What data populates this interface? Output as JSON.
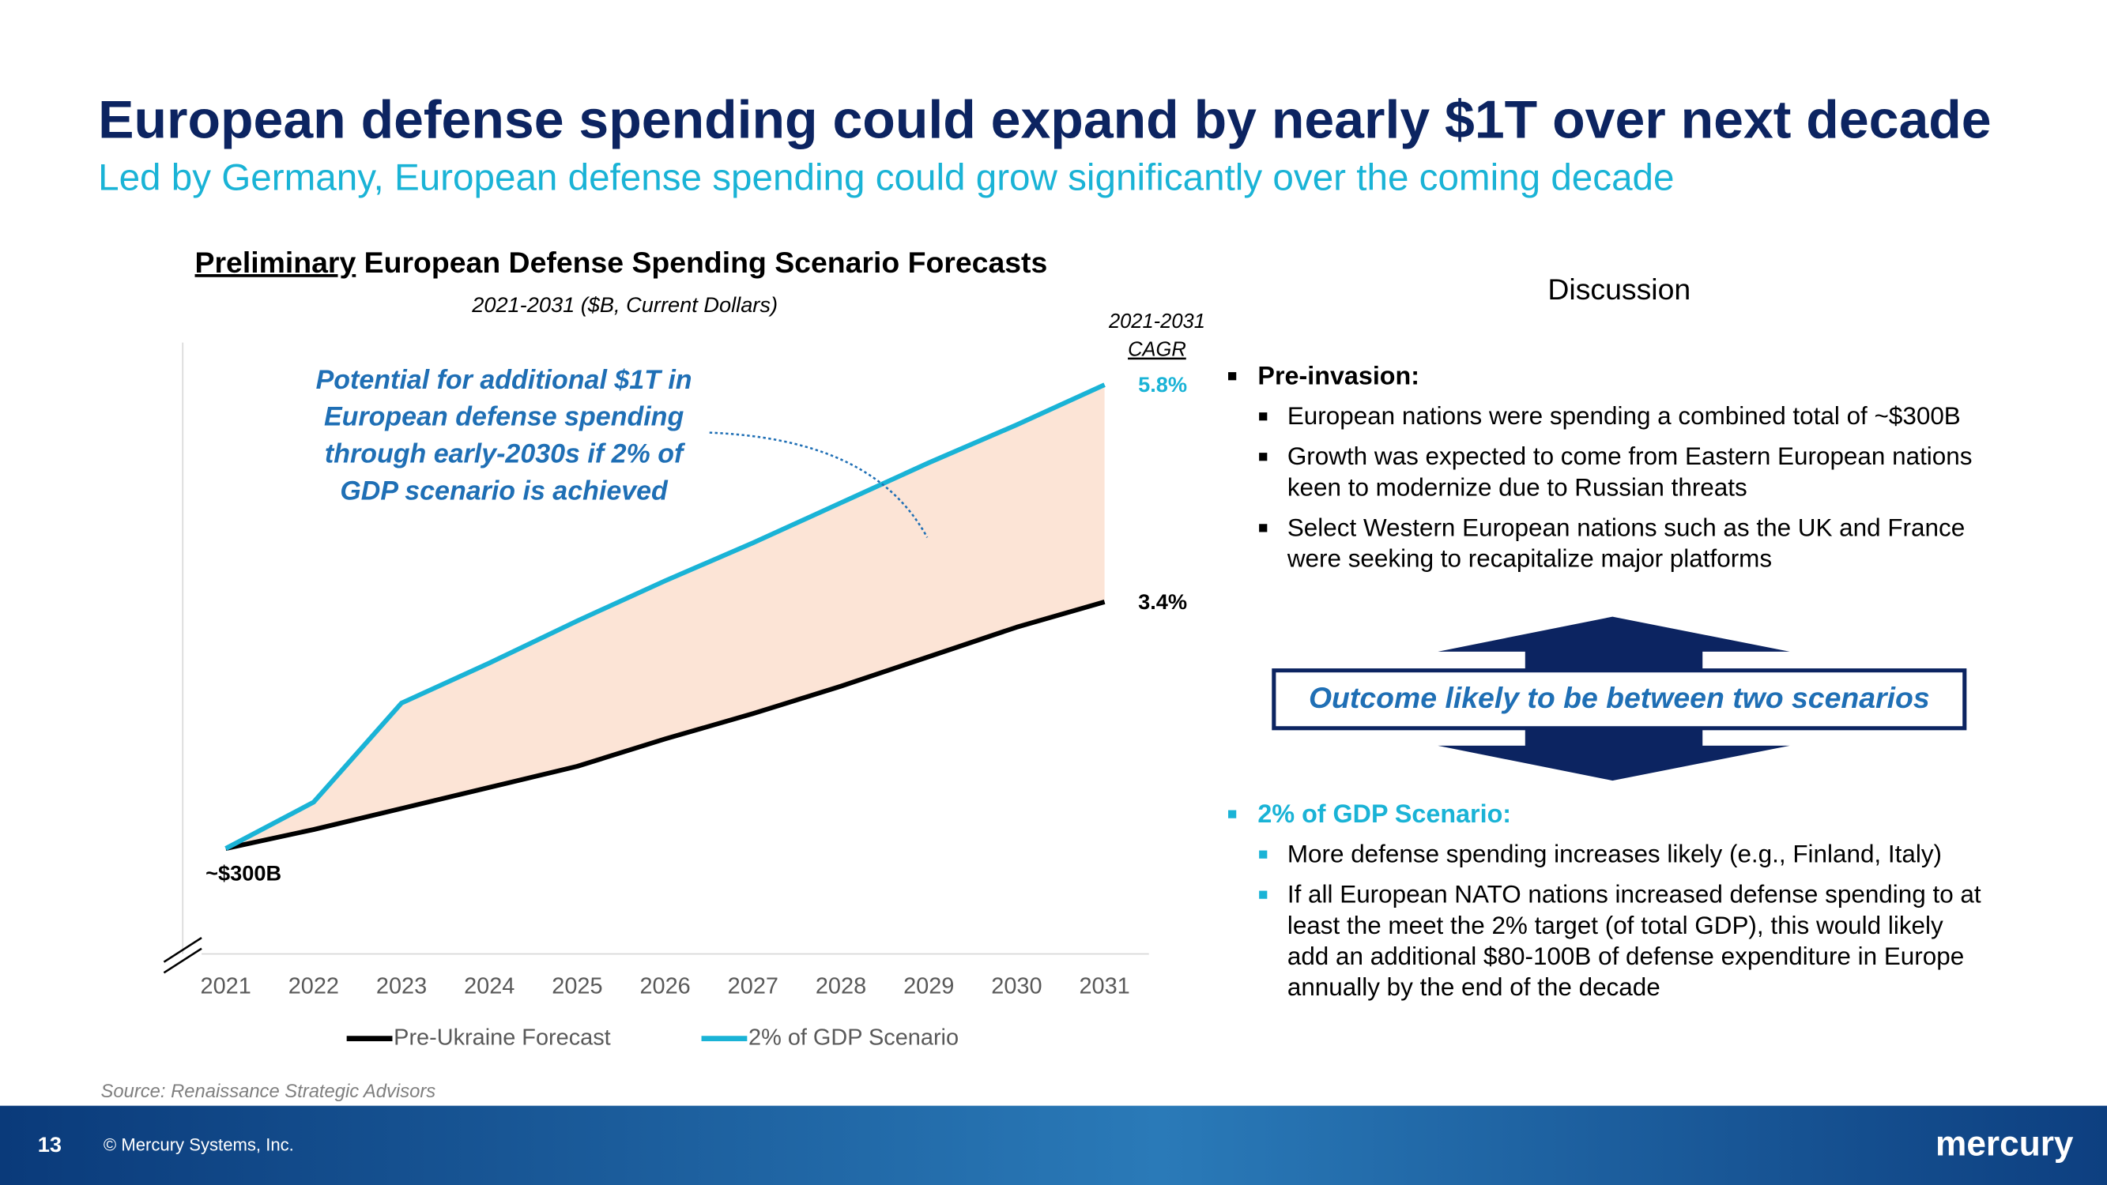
{
  "title": "European defense spending could expand by nearly $1T over next decade",
  "subtitle": "Led by Germany, European defense spending could grow significantly over the coming decade",
  "chart_data": {
    "type": "line",
    "title": [
      "Preliminary",
      "European Defense Spending Scenario Forecasts"
    ],
    "subtitle": "2021-2031 ($B, Current Dollars)",
    "categories": [
      "2021",
      "2022",
      "2023",
      "2024",
      "2025",
      "2026",
      "2027",
      "2028",
      "2029",
      "2030",
      "2031"
    ],
    "series": [
      {
        "name": "Pre-Ukraine Forecast",
        "color": "#000000",
        "values": [
          300,
          309,
          319,
          329,
          339,
          352,
          364,
          377,
          391,
          405,
          417
        ]
      },
      {
        "name": "2% of GDP Scenario",
        "color": "#1ab3d6",
        "values": [
          300,
          322,
          369,
          388,
          408,
          427,
          445,
          464,
          483,
          501,
          520
        ]
      }
    ],
    "ylim": [
      250,
      540
    ],
    "fill_between": "#fce4d6",
    "legend": "bottom",
    "start_label": "~$300B",
    "cagr_header": [
      "2021-2031",
      "CAGR"
    ],
    "end_labels": [
      "3.4%",
      "5.8%"
    ],
    "annotation": [
      "Potential for additional $1T in",
      "European defense spending",
      "through early-2030s if 2% of",
      "GDP scenario is achieved"
    ]
  },
  "discussion": {
    "title": "Discussion",
    "sections": [
      {
        "heading": "Pre-invasion:",
        "color": "#000000",
        "bullets": [
          [
            "European nations were spending a combined total of ~$300B"
          ],
          [
            "Growth was expected to come from Eastern European nations",
            "keen to modernize due to Russian threats"
          ],
          [
            "Select Western European nations such as the UK and France",
            "were seeking to recapitalize major platforms"
          ]
        ]
      },
      {
        "heading": "2% of GDP Scenario:",
        "color": "#1ab3d6",
        "bullets": [
          [
            "More defense spending increases likely (e.g., Finland, Italy)"
          ],
          [
            "If all European NATO nations increased defense spending to at",
            "least the meet the 2% target (of total GDP), this would likely",
            "add an additional $80-100B of defense expenditure in Europe",
            "annually by the end of the decade"
          ]
        ]
      }
    ]
  },
  "callout": "Outcome likely to be between two scenarios",
  "source": "Source: Renaissance Strategic Advisors",
  "footer": {
    "page": "13",
    "copyright": "© Mercury Systems, Inc.",
    "logo": "mercury"
  }
}
